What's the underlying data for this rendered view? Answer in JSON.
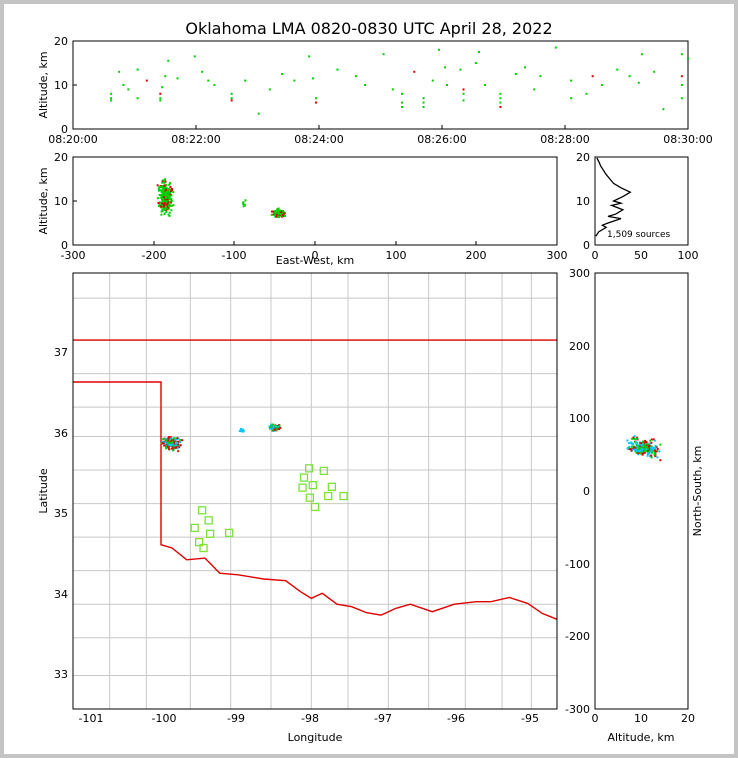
{
  "title": "Oklahoma LMA 0820-0830 UTC April 28, 2022",
  "chart_data": [
    {
      "type": "scatter",
      "panel": "time-height",
      "ylabel": "Altitude, km",
      "ylim": [
        0,
        20
      ],
      "yticks": [
        "0",
        "10",
        "20"
      ],
      "xlim": [
        "08:20:00",
        "08:30:00"
      ],
      "xticks": [
        "08:20:00",
        "08:22:00",
        "08:24:00",
        "08:26:00",
        "08:28:00",
        "08:30:00"
      ],
      "points": [
        {
          "t": 0.75,
          "alt": 13
        },
        {
          "t": 0.82,
          "alt": 10
        },
        {
          "t": 0.9,
          "alt": 9
        },
        {
          "t": 1.05,
          "alt": 13.5
        },
        {
          "t": 1.2,
          "alt": 11
        },
        {
          "t": 0.62,
          "alt": 8
        },
        {
          "t": 0.62,
          "alt": 7
        },
        {
          "t": 0.62,
          "alt": 6.5
        },
        {
          "t": 1.05,
          "alt": 7
        },
        {
          "t": 1.5,
          "alt": 12
        },
        {
          "t": 1.55,
          "alt": 15.5
        },
        {
          "t": 1.7,
          "alt": 11.5
        },
        {
          "t": 1.45,
          "alt": 9.5
        },
        {
          "t": 1.42,
          "alt": 8
        },
        {
          "t": 1.42,
          "alt": 7
        },
        {
          "t": 1.42,
          "alt": 6.5
        },
        {
          "t": 1.98,
          "alt": 16.5
        },
        {
          "t": 2.1,
          "alt": 13
        },
        {
          "t": 2.2,
          "alt": 11
        },
        {
          "t": 2.3,
          "alt": 10
        },
        {
          "t": 2.58,
          "alt": 8
        },
        {
          "t": 2.58,
          "alt": 7
        },
        {
          "t": 2.58,
          "alt": 6.5
        },
        {
          "t": 2.8,
          "alt": 11
        },
        {
          "t": 3.02,
          "alt": 3.5
        },
        {
          "t": 3.2,
          "alt": 9
        },
        {
          "t": 3.4,
          "alt": 12.5
        },
        {
          "t": 3.6,
          "alt": 11
        },
        {
          "t": 3.84,
          "alt": 16.5
        },
        {
          "t": 3.9,
          "alt": 11.5
        },
        {
          "t": 3.95,
          "alt": 7
        },
        {
          "t": 3.95,
          "alt": 6
        },
        {
          "t": 4.3,
          "alt": 13.5
        },
        {
          "t": 4.6,
          "alt": 12
        },
        {
          "t": 4.75,
          "alt": 10
        },
        {
          "t": 5.05,
          "alt": 17
        },
        {
          "t": 5.2,
          "alt": 9
        },
        {
          "t": 5.35,
          "alt": 8
        },
        {
          "t": 5.35,
          "alt": 6
        },
        {
          "t": 5.35,
          "alt": 5
        },
        {
          "t": 5.55,
          "alt": 13
        },
        {
          "t": 5.7,
          "alt": 7
        },
        {
          "t": 5.7,
          "alt": 6
        },
        {
          "t": 5.7,
          "alt": 5
        },
        {
          "t": 5.85,
          "alt": 11
        },
        {
          "t": 5.95,
          "alt": 18
        },
        {
          "t": 6.05,
          "alt": 14
        },
        {
          "t": 6.08,
          "alt": 10
        },
        {
          "t": 6.3,
          "alt": 13.5
        },
        {
          "t": 6.35,
          "alt": 9
        },
        {
          "t": 6.35,
          "alt": 8
        },
        {
          "t": 6.35,
          "alt": 6.5
        },
        {
          "t": 6.55,
          "alt": 15
        },
        {
          "t": 6.6,
          "alt": 17.5
        },
        {
          "t": 6.7,
          "alt": 10
        },
        {
          "t": 6.95,
          "alt": 8
        },
        {
          "t": 6.95,
          "alt": 7
        },
        {
          "t": 6.95,
          "alt": 6
        },
        {
          "t": 6.95,
          "alt": 5
        },
        {
          "t": 7.2,
          "alt": 12.5
        },
        {
          "t": 7.35,
          "alt": 14
        },
        {
          "t": 7.5,
          "alt": 9
        },
        {
          "t": 7.6,
          "alt": 12
        },
        {
          "t": 7.85,
          "alt": 18.5
        },
        {
          "t": 8.1,
          "alt": 11
        },
        {
          "t": 8.1,
          "alt": 7
        },
        {
          "t": 8.35,
          "alt": 8
        },
        {
          "t": 8.45,
          "alt": 12
        },
        {
          "t": 8.6,
          "alt": 10
        },
        {
          "t": 8.85,
          "alt": 13.5
        },
        {
          "t": 9.05,
          "alt": 12
        },
        {
          "t": 9.2,
          "alt": 10.5
        },
        {
          "t": 9.25,
          "alt": 17
        },
        {
          "t": 9.45,
          "alt": 13
        },
        {
          "t": 9.6,
          "alt": 4.5
        },
        {
          "t": 9.9,
          "alt": 17
        },
        {
          "t": 9.9,
          "alt": 12
        },
        {
          "t": 9.9,
          "alt": 10
        },
        {
          "t": 9.9,
          "alt": 7
        },
        {
          "t": 10.0,
          "alt": 16
        }
      ]
    },
    {
      "type": "scatter",
      "panel": "east-west-vs-altitude",
      "xlabel": "East-West, km",
      "ylabel": "Altitude, km",
      "xlim": [
        -300,
        300
      ],
      "ylim": [
        0,
        20
      ],
      "xticks": [
        "-300",
        "-200",
        "-100",
        "0",
        "100",
        "200",
        "300"
      ],
      "yticks": [
        "0",
        "10",
        "20"
      ]
    },
    {
      "type": "line",
      "panel": "altitude-histogram",
      "xlim": [
        0,
        100
      ],
      "ylim": [
        0,
        20
      ],
      "xticks": [
        "0",
        "50",
        "100"
      ],
      "yticks": [
        "0",
        "10",
        "20"
      ],
      "annotation": "1,509 sources",
      "counts_by_altitude": [
        {
          "alt": 19.8,
          "n": 2
        },
        {
          "alt": 19.0,
          "n": 4
        },
        {
          "alt": 18.0,
          "n": 6
        },
        {
          "alt": 17.0,
          "n": 9
        },
        {
          "alt": 16.0,
          "n": 12
        },
        {
          "alt": 15.0,
          "n": 16
        },
        {
          "alt": 14.0,
          "n": 20
        },
        {
          "alt": 13.0,
          "n": 28
        },
        {
          "alt": 12.0,
          "n": 38
        },
        {
          "alt": 11.0,
          "n": 30
        },
        {
          "alt": 10.0,
          "n": 20
        },
        {
          "alt": 9.5,
          "n": 28
        },
        {
          "alt": 9.0,
          "n": 18
        },
        {
          "alt": 8.0,
          "n": 30
        },
        {
          "alt": 7.0,
          "n": 22
        },
        {
          "alt": 6.5,
          "n": 14
        },
        {
          "alt": 6.0,
          "n": 28
        },
        {
          "alt": 5.0,
          "n": 14
        },
        {
          "alt": 4.5,
          "n": 8
        },
        {
          "alt": 4.0,
          "n": 12
        },
        {
          "alt": 3.0,
          "n": 4
        },
        {
          "alt": 2.0,
          "n": 1
        }
      ]
    },
    {
      "type": "scatter",
      "panel": "plan-view-map",
      "xlabel": "Longitude",
      "ylabel": "Latitude",
      "xlim": [
        -101.2,
        -94.6
      ],
      "ylim": [
        32.6,
        37.8
      ],
      "xticks": [
        "-101",
        "-100",
        "-99",
        "-98",
        "-97",
        "-96",
        "-95"
      ],
      "yticks": [
        "33",
        "34",
        "35",
        "36",
        "37"
      ],
      "stations": [
        {
          "lon": -97.98,
          "lat": 35.47
        },
        {
          "lon": -97.78,
          "lat": 35.44
        },
        {
          "lon": -98.05,
          "lat": 35.36
        },
        {
          "lon": -97.93,
          "lat": 35.27
        },
        {
          "lon": -98.07,
          "lat": 35.24
        },
        {
          "lon": -97.67,
          "lat": 35.25
        },
        {
          "lon": -97.72,
          "lat": 35.14
        },
        {
          "lon": -97.97,
          "lat": 35.12
        },
        {
          "lon": -97.51,
          "lat": 35.14
        },
        {
          "lon": -97.9,
          "lat": 35.01
        },
        {
          "lon": -99.44,
          "lat": 34.97
        },
        {
          "lon": -99.35,
          "lat": 34.85
        },
        {
          "lon": -99.54,
          "lat": 34.76
        },
        {
          "lon": -99.33,
          "lat": 34.69
        },
        {
          "lon": -99.07,
          "lat": 34.7
        },
        {
          "lon": -99.48,
          "lat": 34.59
        },
        {
          "lon": -99.42,
          "lat": 34.52
        }
      ]
    },
    {
      "type": "scatter",
      "panel": "altitude-vs-north-south",
      "xlabel": "Altitude, km",
      "ylabel": "North-South, km",
      "xlim": [
        0,
        20
      ],
      "ylim": [
        -300,
        300
      ],
      "xticks": [
        "0",
        "10",
        "20"
      ],
      "yticks": [
        "-300",
        "-200",
        "-100",
        "0",
        "100",
        "200",
        "300"
      ]
    }
  ],
  "colors": {
    "state_border": "#e00000",
    "county_lines": "#c8c8c8",
    "stations": "#7fe03a",
    "sources_early": "#00c8ff",
    "sources_mid": "#00d000",
    "sources_late": "#e00000"
  }
}
